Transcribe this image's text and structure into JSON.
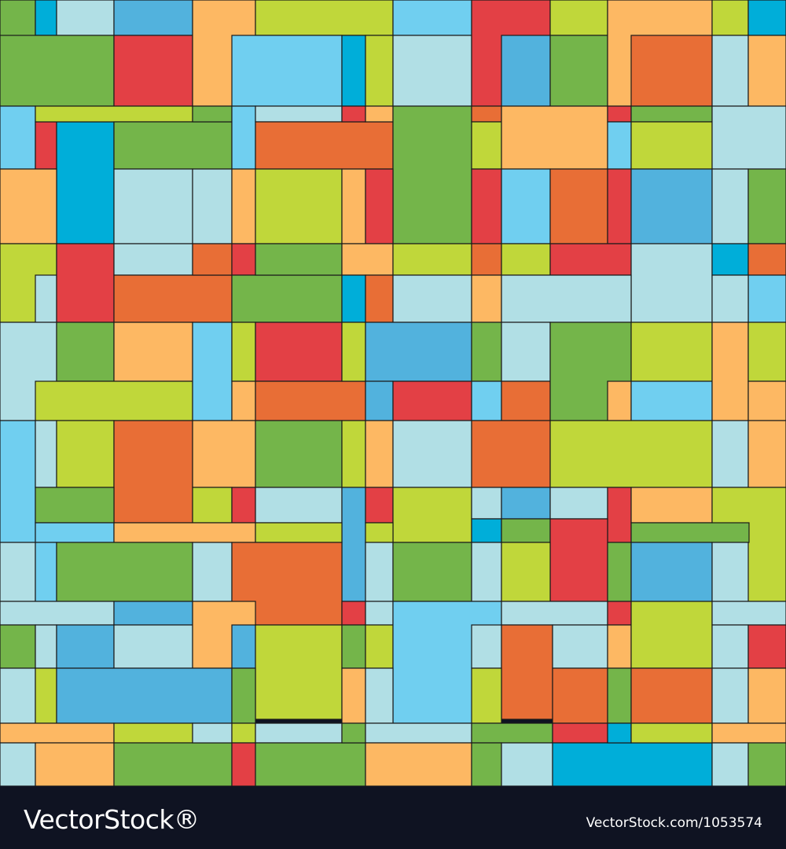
{
  "footer": {
    "brand": "VectorStock®",
    "url": "VectorStock.com/1053574"
  }
}
